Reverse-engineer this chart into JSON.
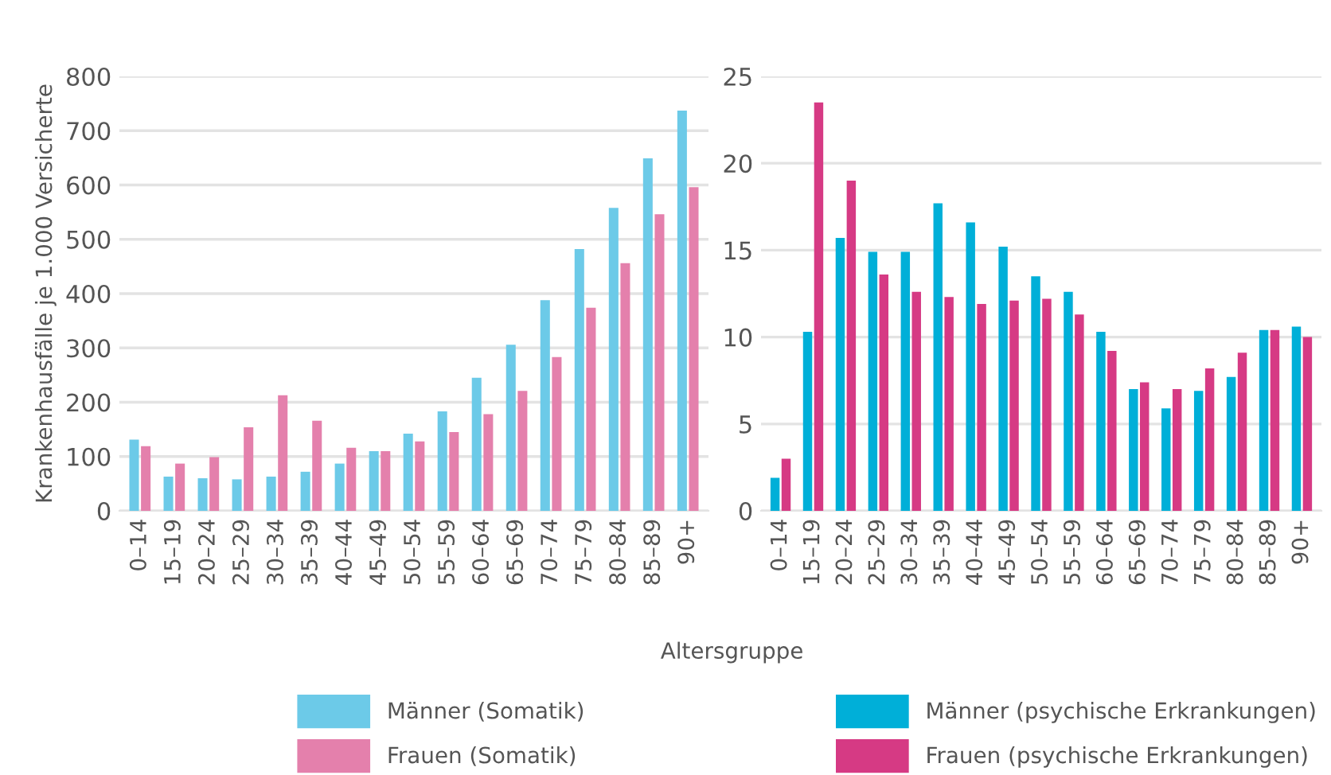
{
  "chart_data": [
    {
      "type": "bar",
      "ylabel": "Krankenhausfälle je 1.000 Versicherte",
      "xlabel": "Altersgruppe",
      "categories": [
        "0–14",
        "15–19",
        "20–24",
        "25–29",
        "30–34",
        "35–39",
        "40–44",
        "45–49",
        "50–54",
        "55–59",
        "60–64",
        "65–69",
        "70–74",
        "75–79",
        "80–84",
        "85–89",
        "90+"
      ],
      "series": [
        {
          "name": "Männer (Somatik)",
          "color": "#6ccae8",
          "values": [
            131,
            63,
            60,
            58,
            63,
            72,
            87,
            110,
            142,
            183,
            245,
            306,
            388,
            482,
            558,
            649,
            737
          ]
        },
        {
          "name": "Frauen (Somatik)",
          "color": "#e480ac",
          "values": [
            119,
            87,
            99,
            154,
            213,
            166,
            116,
            110,
            128,
            145,
            178,
            221,
            283,
            374,
            456,
            546,
            596
          ]
        }
      ],
      "ylim": [
        0,
        800
      ],
      "yticks": [
        0,
        100,
        200,
        300,
        400,
        500,
        600,
        700,
        800
      ],
      "grid": "y",
      "legend": "bottom"
    },
    {
      "type": "bar",
      "categories": [
        "0–14",
        "15–19",
        "20–24",
        "25–29",
        "30–34",
        "35–39",
        "40–44",
        "45–49",
        "50–54",
        "55–59",
        "60–64",
        "65–69",
        "70–74",
        "75–79",
        "80–84",
        "85–89",
        "90+"
      ],
      "series": [
        {
          "name": "Männer (psychische Erkrankungen)",
          "color": "#00afd8",
          "values": [
            1.9,
            10.3,
            15.7,
            14.9,
            14.9,
            17.7,
            16.6,
            15.2,
            13.5,
            12.6,
            10.3,
            7.0,
            5.9,
            6.9,
            7.7,
            10.4,
            10.6
          ]
        },
        {
          "name": "Frauen (psychische Erkrankungen)",
          "color": "#d63a84",
          "values": [
            3.0,
            23.5,
            19.0,
            13.6,
            12.6,
            12.3,
            11.9,
            12.1,
            12.2,
            11.3,
            9.2,
            7.4,
            7.0,
            8.2,
            9.1,
            10.4,
            10.0
          ]
        }
      ],
      "ylim": [
        0,
        25
      ],
      "yticks": [
        0,
        5,
        10,
        15,
        20,
        25
      ],
      "grid": "y",
      "legend": "bottom"
    }
  ]
}
